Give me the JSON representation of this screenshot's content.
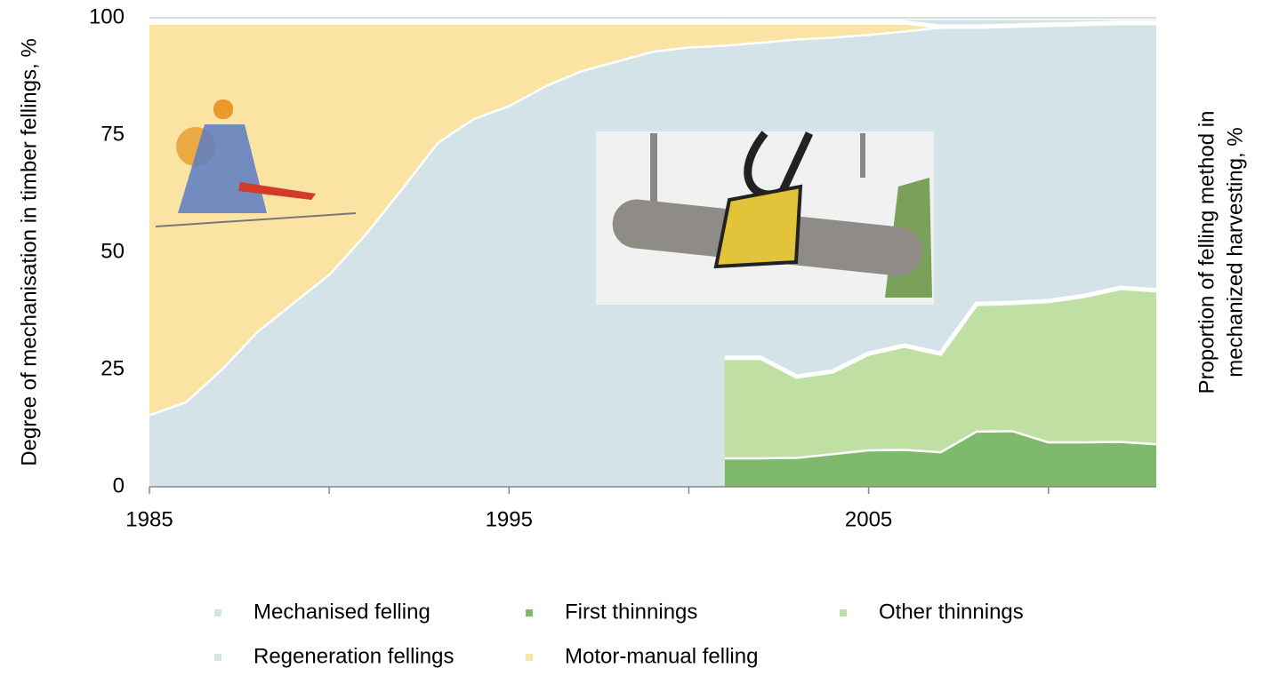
{
  "chart_data": {
    "type": "stacked_area",
    "y_label": "Degree of mechanisation in timber fellings, %",
    "y2_label": "Proportion of felling method in mechanized harvesting, %",
    "xlim": [
      1985,
      2013
    ],
    "xticks": [
      1985,
      1995,
      2005
    ],
    "x_minor_ticks": [
      1990,
      2000,
      2010
    ],
    "ylim": [
      0,
      100
    ],
    "yticks": [
      0,
      25,
      50,
      75,
      100
    ],
    "y2lim": [
      0,
      100
    ],
    "series": [
      {
        "name": "Mechanised felling",
        "color": "#d3e3e8",
        "axis": "y",
        "x": [
          1985,
          1986,
          1987,
          1988,
          1989,
          1990,
          1991,
          1992,
          1993,
          1994,
          1995,
          1996,
          1997,
          1998,
          1999,
          2000,
          2001,
          2002,
          2003,
          2004,
          2005,
          2006,
          2007,
          2008,
          2009,
          2010,
          2011,
          2012,
          2013
        ],
        "values": [
          15.5,
          18.2,
          25.2,
          33.3,
          39.4,
          45.5,
          54,
          63.6,
          73.5,
          78.6,
          81.4,
          85.6,
          88.8,
          90.9,
          93,
          93.9,
          94.3,
          94.9,
          95.6,
          96,
          96.6,
          97.3,
          98.1,
          98.1,
          98.3,
          98.5,
          98.7,
          98.9,
          98.9
        ]
      },
      {
        "name": "First thinnings",
        "color": "#7fb96c",
        "axis": "y2",
        "x": [
          2001,
          2002,
          2003,
          2004,
          2005,
          2006,
          2007,
          2008,
          2009,
          2010,
          2011,
          2012,
          2013
        ],
        "values": [
          6.3,
          6.3,
          6.4,
          7.2,
          8,
          8.1,
          7.6,
          12,
          12.1,
          9.7,
          9.7,
          9.8,
          9.3
        ]
      },
      {
        "name": "Other thinnings",
        "color": "#bfe0a2",
        "axis": "y2",
        "x": [
          2001,
          2002,
          2003,
          2004,
          2005,
          2006,
          2007,
          2008,
          2009,
          2010,
          2011,
          2012,
          2013
        ],
        "values": [
          21.2,
          21.2,
          17.1,
          17.4,
          20.4,
          22,
          20.8,
          27,
          27.1,
          29.9,
          31,
          32.6,
          32.6
        ]
      },
      {
        "name": "Regeneration fellings",
        "color": "#d3e3e8",
        "axis": "y2",
        "x": [
          2001,
          2002,
          2003,
          2004,
          2005,
          2006,
          2007,
          2008,
          2009,
          2010,
          2011,
          2012,
          2013
        ],
        "values": [
          72.5,
          72.5,
          76.5,
          75.4,
          71.6,
          69.9,
          71.6,
          61,
          60.8,
          60.4,
          59.3,
          57.6,
          58.1
        ]
      },
      {
        "name": "Motor-manual felling",
        "color": "#fbe3a4",
        "axis": "y",
        "x": [
          1985,
          1986,
          1987,
          1988,
          1989,
          1990,
          1991,
          1992,
          1993,
          1994,
          1995,
          1996,
          1997,
          1998,
          1999,
          2000,
          2001,
          2002,
          2003,
          2004,
          2005,
          2006,
          2007,
          2008,
          2009,
          2010,
          2011,
          2012,
          2013
        ],
        "values": [
          83.5,
          80.8,
          73.8,
          65.7,
          59.6,
          53.5,
          45,
          35.4,
          25.5,
          20.4,
          17.6,
          13.4,
          10.2,
          8.1,
          6,
          5.1,
          4.7,
          4.1,
          3.4,
          3,
          2.4,
          1.7,
          0,
          0,
          0,
          0,
          0,
          0,
          0
        ]
      }
    ]
  }
}
